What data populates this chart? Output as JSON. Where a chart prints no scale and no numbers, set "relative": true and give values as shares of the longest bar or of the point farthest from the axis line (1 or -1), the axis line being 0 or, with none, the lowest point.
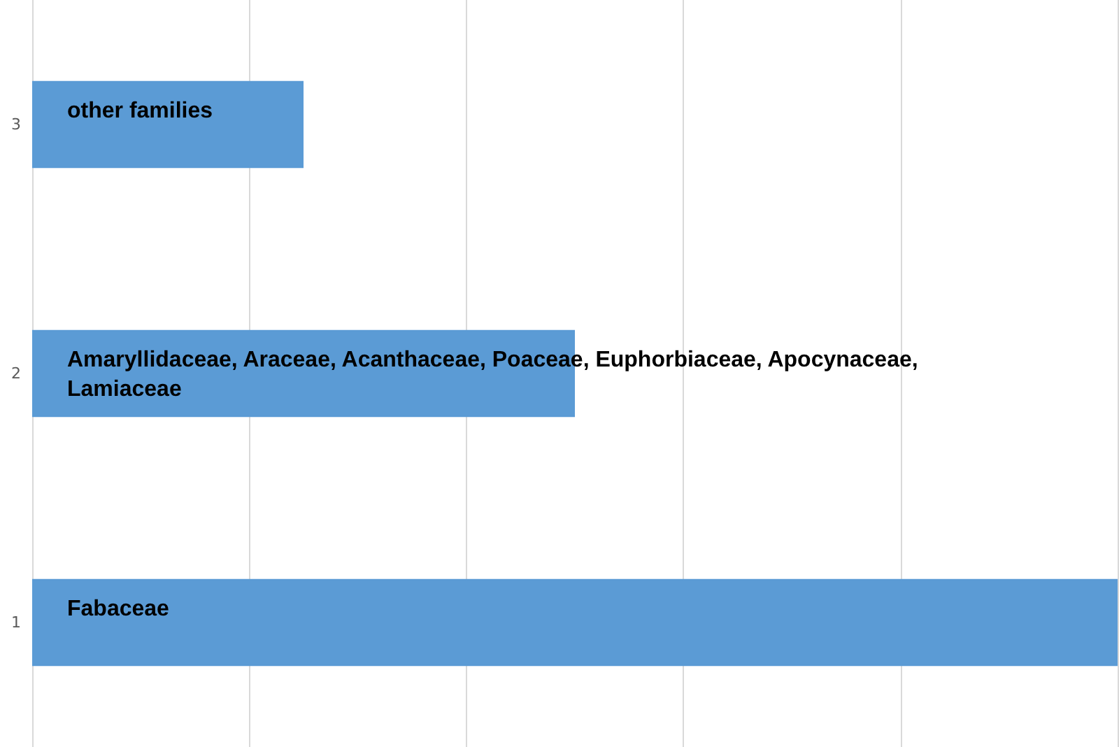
{
  "chart_data": {
    "type": "bar",
    "orientation": "horizontal",
    "relative": true,
    "categories": [
      "3",
      "2",
      "1"
    ],
    "values": [
      0.25,
      0.5,
      1
    ],
    "color": "#5b9bd5",
    "grid": "x",
    "annotations": [
      "other families",
      "Amaryllidaceae, Araceae, Acanthaceae, Poaceae, Euphorbiaceae, Apocynaceae, Lamiaceae",
      "Fabaceae"
    ]
  }
}
